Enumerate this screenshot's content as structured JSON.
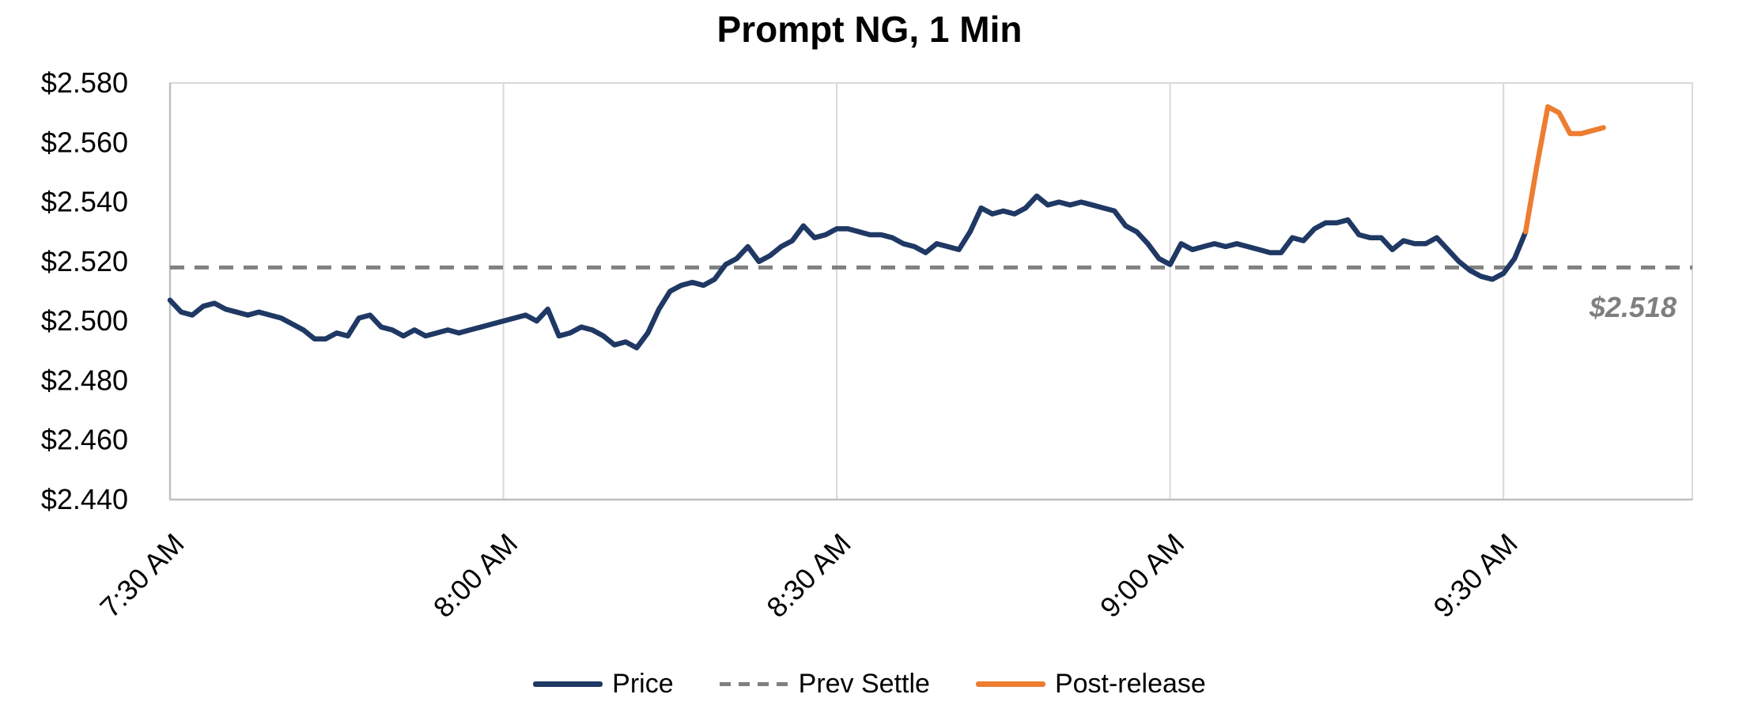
{
  "chart_data": {
    "type": "line",
    "title": "Prompt NG, 1 Min",
    "x_axis": {
      "unit": "minutes since 7:30 AM",
      "range": [
        0,
        137
      ],
      "ticks": [
        {
          "x": 0,
          "label": "7:30 AM"
        },
        {
          "x": 30,
          "label": "8:00 AM"
        },
        {
          "x": 60,
          "label": "8:30 AM"
        },
        {
          "x": 90,
          "label": "9:00 AM"
        },
        {
          "x": 120,
          "label": "9:30 AM"
        }
      ]
    },
    "y_axis": {
      "range": [
        2.44,
        2.58
      ],
      "tick_step": 0.02,
      "ticks": [
        {
          "y": 2.44,
          "label": "$2.440"
        },
        {
          "y": 2.46,
          "label": "$2.460"
        },
        {
          "y": 2.48,
          "label": "$2.480"
        },
        {
          "y": 2.5,
          "label": "$2.500"
        },
        {
          "y": 2.52,
          "label": "$2.520"
        },
        {
          "y": 2.54,
          "label": "$2.540"
        },
        {
          "y": 2.56,
          "label": "$2.560"
        },
        {
          "y": 2.58,
          "label": "$2.580"
        }
      ]
    },
    "prev_settle": {
      "value": 2.518,
      "annotation": "$2.518",
      "color": "#808080"
    },
    "series": [
      {
        "name": "Price",
        "color": "#1F3864",
        "x_start": 0,
        "x_step": 1,
        "values": [
          2.507,
          2.503,
          2.502,
          2.505,
          2.506,
          2.504,
          2.503,
          2.502,
          2.503,
          2.502,
          2.501,
          2.499,
          2.497,
          2.494,
          2.494,
          2.496,
          2.495,
          2.501,
          2.502,
          2.498,
          2.497,
          2.495,
          2.497,
          2.495,
          2.496,
          2.497,
          2.496,
          2.497,
          2.498,
          2.499,
          2.5,
          2.501,
          2.502,
          2.5,
          2.504,
          2.495,
          2.496,
          2.498,
          2.497,
          2.495,
          2.492,
          2.493,
          2.491,
          2.496,
          2.504,
          2.51,
          2.512,
          2.513,
          2.512,
          2.514,
          2.519,
          2.521,
          2.525,
          2.52,
          2.522,
          2.525,
          2.527,
          2.532,
          2.528,
          2.529,
          2.531,
          2.531,
          2.53,
          2.529,
          2.529,
          2.528,
          2.526,
          2.525,
          2.523,
          2.526,
          2.525,
          2.524,
          2.53,
          2.538,
          2.536,
          2.537,
          2.536,
          2.538,
          2.542,
          2.539,
          2.54,
          2.539,
          2.54,
          2.539,
          2.538,
          2.537,
          2.532,
          2.53,
          2.526,
          2.521,
          2.519,
          2.526,
          2.524,
          2.525,
          2.526,
          2.525,
          2.526,
          2.525,
          2.524,
          2.523,
          2.523,
          2.528,
          2.527,
          2.531,
          2.533,
          2.533,
          2.534,
          2.529,
          2.528,
          2.528,
          2.524,
          2.527,
          2.526,
          2.526,
          2.528,
          2.524,
          2.52,
          2.517,
          2.515,
          2.514,
          2.516,
          2.521,
          2.53
        ]
      },
      {
        "name": "Post-release",
        "color": "#ED7D31",
        "x_start": 122,
        "x_step": 1,
        "values": [
          2.53,
          2.552,
          2.572,
          2.57,
          2.563,
          2.563,
          2.564,
          2.565
        ]
      }
    ],
    "legend": [
      {
        "label": "Price",
        "style": "solid",
        "color": "#1F3864"
      },
      {
        "label": "Prev Settle",
        "style": "dashed",
        "color": "#808080"
      },
      {
        "label": "Post-release",
        "style": "solid",
        "color": "#ED7D31"
      }
    ],
    "grid": {
      "vertical": true,
      "horizontal": false,
      "legend_position": "bottom-center"
    }
  }
}
